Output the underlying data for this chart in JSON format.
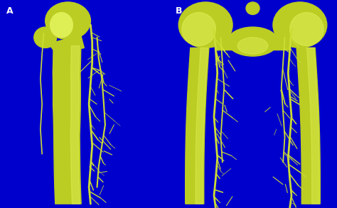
{
  "background_color": "#0000CD",
  "fig_width": 4.74,
  "fig_height": 2.93,
  "dpi": 100,
  "label_A": "A",
  "label_B": "B",
  "label_color": "white",
  "label_fontsize": 9,
  "label_fontweight": "bold",
  "bone_color": "#BBCC22",
  "bone_highlight": "#DDEF55",
  "bone_shadow": "#8A9900",
  "artery_color": "#CCDD33",
  "artery_thin": "#BBCC22"
}
